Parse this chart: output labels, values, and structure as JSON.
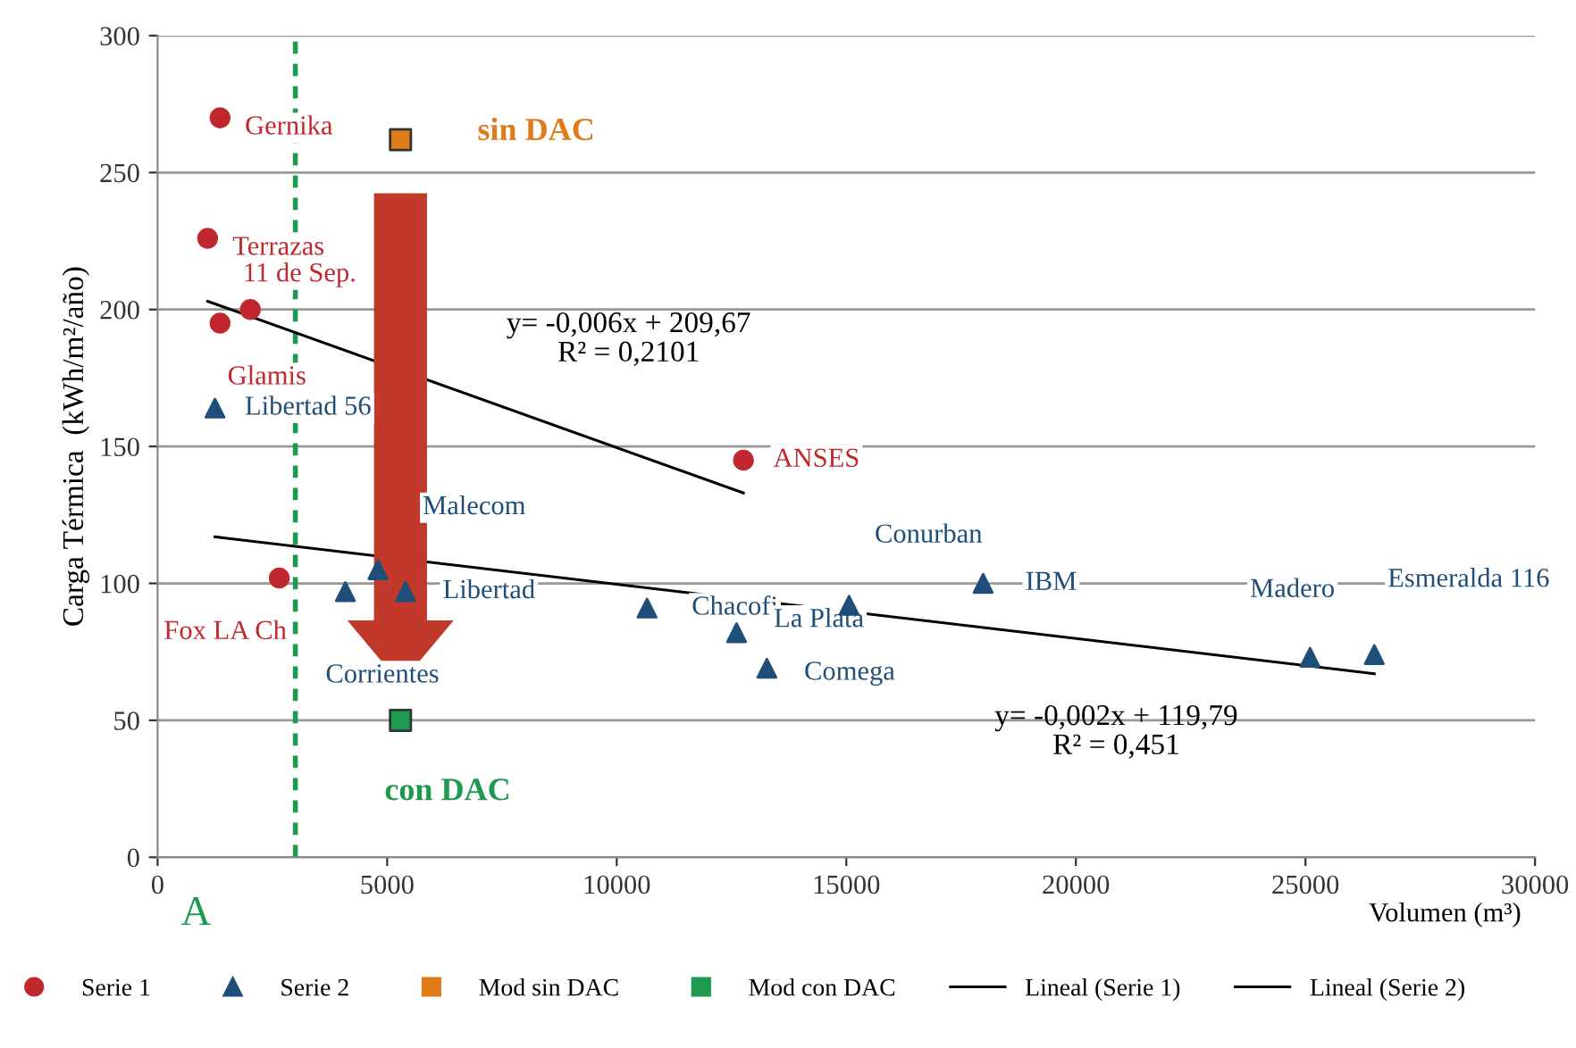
{
  "chart_data": {
    "type": "scatter",
    "xlabel": "Volumen (m³)",
    "ylabel": "Carga Térmica  (kWh/m²/año)",
    "xlim": [
      0,
      30000
    ],
    "xticks": [
      0,
      5000,
      10000,
      15000,
      20000,
      25000,
      30000
    ],
    "ylim": [
      0,
      300
    ],
    "yticks": [
      0,
      50,
      100,
      150,
      200,
      250,
      300
    ],
    "grid": "y",
    "legend": "bottom",
    "series": [
      {
        "name": "Serie 1",
        "color": "#c0282d",
        "marker": "circle",
        "x": [
          1360,
          1090,
          2020,
          1360,
          2650,
          12760
        ],
        "values": [
          270,
          226,
          200,
          195,
          102,
          145
        ]
      },
      {
        "name": "Serie 2",
        "color": "#1f4e79",
        "marker": "triangle",
        "x": [
          1250,
          4090,
          4800,
          5400,
          10660,
          12610,
          13270,
          15060,
          17980,
          25100,
          26500
        ],
        "values": [
          164,
          97,
          105,
          97,
          91,
          82,
          69,
          92,
          100,
          73,
          74
        ]
      },
      {
        "name": "Mod sin DAC",
        "color": "#e07b1a",
        "marker": "square",
        "x": [
          5290
        ],
        "values": [
          262
        ]
      },
      {
        "name": "Mod con DAC",
        "color": "#1e9a50",
        "marker": "square",
        "x": [
          5290
        ],
        "values": [
          50
        ]
      },
      {
        "name": "Lineal (Serie 1)",
        "type": "line",
        "color": "#000000",
        "marker": "none",
        "line_style": "solid",
        "x": [
          1090,
          12760
        ],
        "values": [
          203,
          133
        ]
      },
      {
        "name": "Lineal (Serie 2)",
        "type": "line",
        "color": "#000000",
        "marker": "none",
        "line_style": "solid",
        "x": [
          1250,
          26500
        ],
        "values": [
          117,
          67
        ]
      }
    ],
    "ref_lines": [
      {
        "axis": "x",
        "value": 3000,
        "label": "A",
        "color": "#1e9a50",
        "line_style": "dashed"
      }
    ],
    "annotations": [
      {
        "text": "Gernika",
        "x": 1360,
        "y": 270
      },
      {
        "text": "Terrazas",
        "x": 1090,
        "y": 226
      },
      {
        "text": "11 de Sep.",
        "x": 2020,
        "y": 200
      },
      {
        "text": "Glamis",
        "x": 1360,
        "y": 195
      },
      {
        "text": "Fox LA Ch",
        "x": 2650,
        "y": 102
      },
      {
        "text": "ANSES",
        "x": 12760,
        "y": 145
      },
      {
        "text": "Libertad 56",
        "x": 1250,
        "y": 164
      },
      {
        "text": "Corrientes",
        "x": 4090,
        "y": 97
      },
      {
        "text": "Malecom",
        "x": 4800,
        "y": 105
      },
      {
        "text": "Libertad",
        "x": 5400,
        "y": 97
      },
      {
        "text": "Chacofi",
        "x": 10660,
        "y": 91
      },
      {
        "text": "La Plata",
        "x": 12610,
        "y": 82
      },
      {
        "text": "Comega",
        "x": 13270,
        "y": 69
      },
      {
        "text": "Conurban",
        "x": 15060,
        "y": 92
      },
      {
        "text": "IBM",
        "x": 17980,
        "y": 100
      },
      {
        "text": "Madero",
        "x": 25100,
        "y": 73
      },
      {
        "text": "Esmeralda 116",
        "x": 26500,
        "y": 74
      },
      {
        "text": "sin DAC",
        "x": 5290,
        "y": 262
      },
      {
        "text": "con DAC",
        "x": 5290,
        "y": 50
      },
      "y= -0,006x + 209,67\nR² = 0,2101",
      "y= -0,002x + 119,79\nR² = 0,451"
    ]
  }
}
